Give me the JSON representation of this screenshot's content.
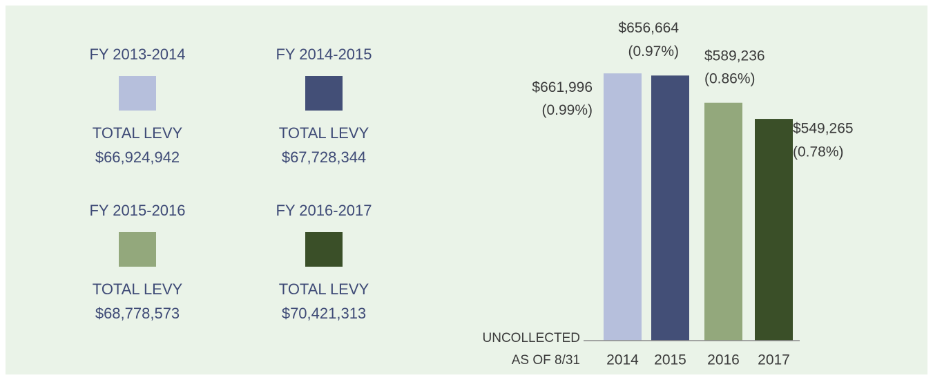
{
  "chart_data": {
    "type": "bar",
    "categories": [
      "2014",
      "2015",
      "2016",
      "2017"
    ],
    "values": [
      661996,
      656664,
      589236,
      549265
    ],
    "value_labels": [
      "$661,996",
      "$656,664",
      "$589,236",
      "$549,265"
    ],
    "share_labels": [
      "(0.99%)",
      "(0.97%)",
      "(0.86%)",
      "(0.78%)"
    ],
    "xlabel_lines": [
      "UNCOLLECTED",
      "AS OF 8/31"
    ],
    "ylim": [
      0,
      700000
    ],
    "series": [
      {
        "name": "FY 2013-2014",
        "color": "#b6bfdc"
      },
      {
        "name": "FY 2014-2015",
        "color": "#434f77"
      },
      {
        "name": "FY 2015-2016",
        "color": "#93a87c"
      },
      {
        "name": "FY 2016-2017",
        "color": "#3a4f28"
      }
    ],
    "levy_label": "TOTAL LEVY",
    "total_levies": [
      {
        "value": 66924942,
        "label": "$66,924,942"
      },
      {
        "value": 67728344,
        "label": "$67,728,344"
      },
      {
        "value": 68778573,
        "label": "$68,778,573"
      },
      {
        "value": 70421313,
        "label": "$70,421,313"
      }
    ]
  }
}
